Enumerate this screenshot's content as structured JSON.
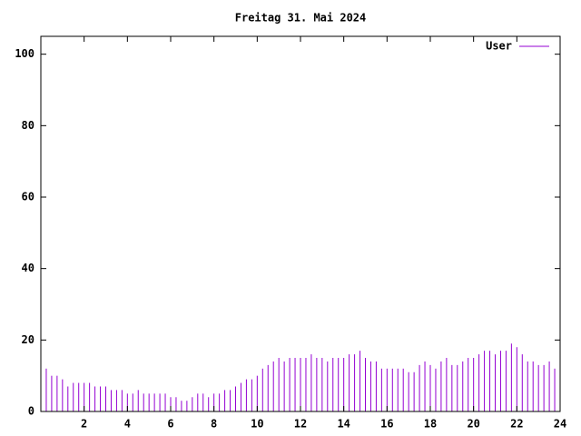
{
  "chart_data": {
    "type": "impulse",
    "title": "Freitag 31. Mai 2024",
    "x": [
      0,
      0.25,
      0.5,
      0.75,
      1,
      1.25,
      1.5,
      1.75,
      2,
      2.25,
      2.5,
      2.75,
      3,
      3.25,
      3.5,
      3.75,
      4,
      4.25,
      4.5,
      4.75,
      5,
      5.25,
      5.5,
      5.75,
      6,
      6.25,
      6.5,
      6.75,
      7,
      7.25,
      7.5,
      7.75,
      8,
      8.25,
      8.5,
      8.75,
      9,
      9.25,
      9.5,
      9.75,
      10,
      10.25,
      10.5,
      10.75,
      11,
      11.25,
      11.5,
      11.75,
      12,
      12.25,
      12.5,
      12.75,
      13,
      13.25,
      13.5,
      13.75,
      14,
      14.25,
      14.5,
      14.75,
      15,
      15.25,
      15.5,
      15.75,
      16,
      16.25,
      16.5,
      16.75,
      17,
      17.25,
      17.5,
      17.75,
      18,
      18.25,
      18.5,
      18.75,
      19,
      19.25,
      19.5,
      19.75,
      20,
      20.25,
      20.5,
      20.75,
      21,
      21.25,
      21.5,
      21.75,
      22,
      22.25,
      22.5,
      22.75,
      23,
      23.25,
      23.5,
      23.75
    ],
    "series": [
      {
        "name": "User",
        "color": "#9400d3",
        "values": [
          13,
          12,
          10,
          10,
          9,
          7,
          8,
          8,
          8,
          8,
          7,
          7,
          7,
          6,
          6,
          6,
          5,
          5,
          6,
          5,
          5,
          5,
          5,
          5,
          4,
          4,
          3,
          3,
          4,
          5,
          5,
          4,
          5,
          5,
          6,
          6,
          7,
          8,
          9,
          9,
          10,
          12,
          13,
          14,
          15,
          14,
          15,
          15,
          15,
          15,
          16,
          15,
          15,
          14,
          15,
          15,
          15,
          16,
          16,
          17,
          15,
          14,
          14,
          12,
          12,
          12,
          12,
          12,
          11,
          11,
          13,
          14,
          13,
          12,
          14,
          15,
          13,
          13,
          14,
          15,
          15,
          16,
          17,
          17,
          16,
          17,
          17,
          19,
          18,
          16,
          14,
          14,
          13,
          13,
          14,
          12
        ]
      }
    ],
    "xlim": [
      0,
      24
    ],
    "xticks": [
      2,
      4,
      6,
      8,
      10,
      12,
      14,
      16,
      18,
      20,
      22,
      24
    ],
    "ylim": [
      0,
      105
    ],
    "yticks": [
      0,
      20,
      40,
      60,
      80,
      100
    ],
    "legend": "top-right"
  }
}
